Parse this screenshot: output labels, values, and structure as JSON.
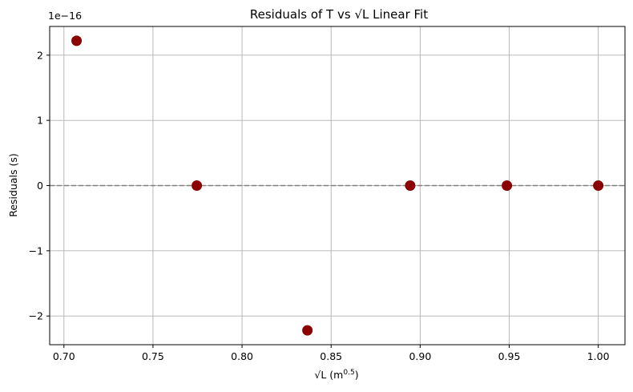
{
  "chart_data": {
    "type": "scatter",
    "title": "Residuals of T vs √L Linear Fit",
    "xlabel_main": "√L (m",
    "xlabel_sup": "0.5",
    "xlabel_end": ")",
    "ylabel": "Residuals (s)",
    "y_offset_label": "1e−16",
    "x": [
      0.7071,
      0.7746,
      0.8367,
      0.8944,
      0.9487,
      1.0
    ],
    "y": [
      2.22,
      0.0,
      -2.22,
      0.0,
      0.0,
      0.0
    ],
    "y_scale_note": "values ×1e−16 s",
    "xlim": [
      0.692,
      1.015
    ],
    "ylim": [
      -2.44,
      2.44
    ],
    "xticks": [
      0.7,
      0.75,
      0.8,
      0.85,
      0.9,
      0.95,
      1.0
    ],
    "xtick_labels": [
      "0.70",
      "0.75",
      "0.80",
      "0.85",
      "0.90",
      "0.95",
      "1.00"
    ],
    "yticks": [
      -2,
      -1,
      0,
      1,
      2
    ],
    "ytick_labels": [
      "−2",
      "−1",
      "0",
      "1",
      "2"
    ],
    "reference_line": {
      "y": 0,
      "style": "dashed",
      "color": "#808080"
    },
    "marker_color": "#8b0000",
    "grid": true
  }
}
